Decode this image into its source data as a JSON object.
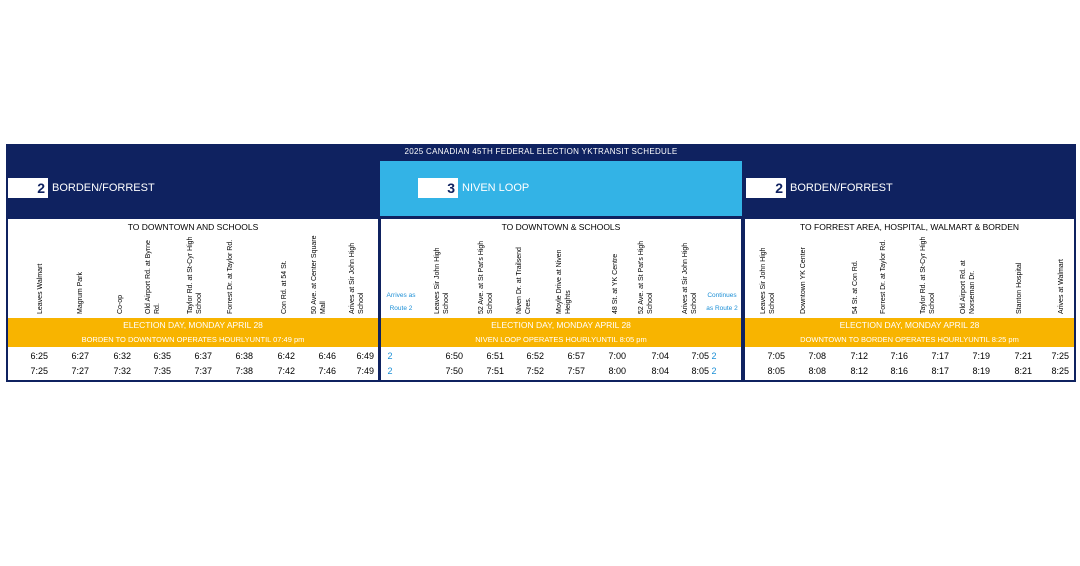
{
  "title": "2025 CANADIAN 45TH FEDERAL ELECTION YKTRANSIT SCHEDULE",
  "colors": {
    "navy": "#0f2260",
    "lightblue": "#33b3e6",
    "gold": "#f8b400",
    "routeBlue": "#1c8fd6"
  },
  "routes": [
    {
      "number": "2",
      "name": "BORDEN/FORREST",
      "direction": "TO DOWNTOWN AND SCHOOLS",
      "stops": [
        "Leaves Walmart",
        "Magrum Park",
        "Co-op",
        "Old Airport Rd. at Byrne Rd.",
        "Taylor Rd. at St-Cyr High School",
        "Forrest Dr. at Taylor Rd.",
        "Con Rd. at 54 St.",
        "50 Ave. at Center Square Mall",
        "Arives at Sir John High School"
      ],
      "band1": "ELECTION DAY, MONDAY APRIL 28",
      "band2": "BORDEN TO DOWNTOWN OPERATES HOURLYUNTIL 07:49 pm",
      "times": [
        [
          "6:25",
          "6:27",
          "6:32",
          "6:35",
          "6:37",
          "6:38",
          "6:42",
          "6:46",
          "6:49"
        ],
        [
          "7:25",
          "7:27",
          "7:32",
          "7:35",
          "7:37",
          "7:38",
          "7:42",
          "7:46",
          "7:49"
        ]
      ]
    },
    {
      "number": "3",
      "name": "NIVEN LOOP",
      "direction": "TO DOWNTOWN & SCHOOLS",
      "arrivesNote": [
        "Arrives as",
        "Route 2"
      ],
      "continuesNote": [
        "Continues",
        "as Route 2"
      ],
      "stops": [
        "Leaves Sir John High School",
        "52 Ave. at St Pat's High School",
        "Niven Dr. at Trailsend Cres.",
        "Moyle Drive at Niven Heights",
        "48 St. at YK Centre",
        "52 Ave. at St Pat's High School",
        "Arives at Sir John High School"
      ],
      "band1": "ELECTION DAY, MONDAY APRIL 28",
      "band2": "NIVEN LOOP OPERATES HOURLYUNTIL 8:05 pm",
      "times": [
        [
          "2",
          "6:50",
          "6:51",
          "6:52",
          "6:57",
          "7:00",
          "7:04",
          "7:05",
          "2"
        ],
        [
          "2",
          "7:50",
          "7:51",
          "7:52",
          "7:57",
          "8:00",
          "8:04",
          "8:05",
          "2"
        ]
      ]
    },
    {
      "number": "2",
      "name": "BORDEN/FORREST",
      "direction": "TO FORREST AREA, HOSPITAL, WALMART & BORDEN",
      "stops": [
        "Leaves Sir John High School",
        "Downtown YK Center",
        "54 St. at Con Rd.",
        "Forrest Dr. at Taylor Rd.",
        "Taylor Rd. at St-Cyr High School",
        "Old Airport Rd. at Norseman Dr.",
        "Stanton Hospital",
        "Arives at Walmart"
      ],
      "band1": "ELECTION DAY, MONDAY APRIL 28",
      "band2": "DOWNTOWN TO BORDEN OPERATES HOURLYUNTIL 8:25 pm",
      "times": [
        [
          "7:05",
          "7:08",
          "7:12",
          "7:16",
          "7:17",
          "7:19",
          "7:21",
          "7:25"
        ],
        [
          "8:05",
          "8:08",
          "8:12",
          "8:16",
          "8:17",
          "8:19",
          "8:21",
          "8:25"
        ]
      ]
    }
  ]
}
